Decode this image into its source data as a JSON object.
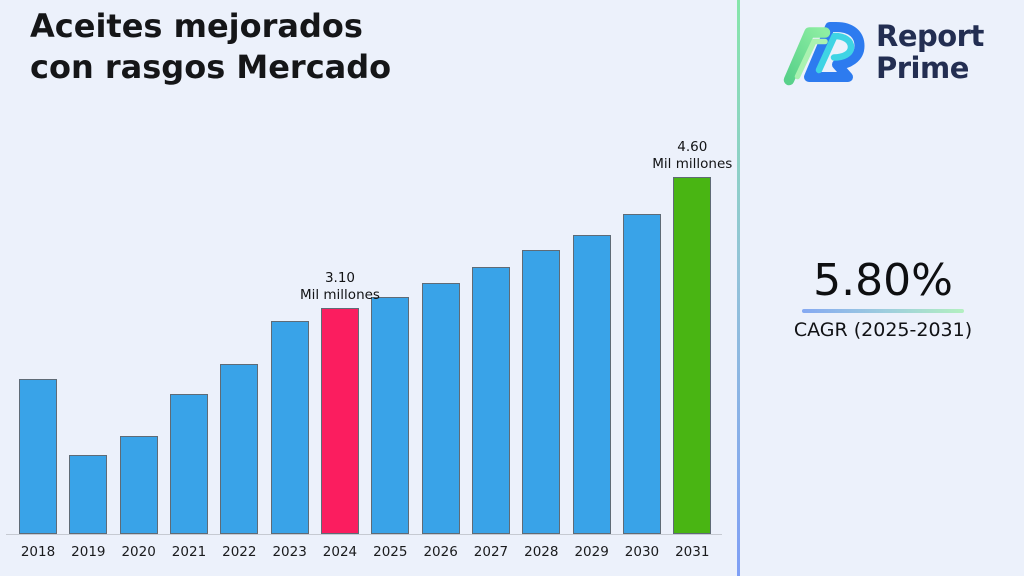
{
  "title": {
    "line1": "Aceites mejorados",
    "line2": "con rasgos Mercado"
  },
  "brand": {
    "name_line1": "Report",
    "name_line2": "Prime"
  },
  "cagr": {
    "value": "5.80%",
    "label": "CAGR (2025-2031)"
  },
  "chart_data": {
    "type": "bar",
    "title": "Aceites mejorados con rasgos Mercado",
    "categories": [
      "2018",
      "2019",
      "2020",
      "2021",
      "2022",
      "2023",
      "2024",
      "2025",
      "2026",
      "2027",
      "2028",
      "2029",
      "2030",
      "2031"
    ],
    "values": [
      2.28,
      1.41,
      1.63,
      2.11,
      2.46,
      2.95,
      3.1,
      3.23,
      3.39,
      3.57,
      3.77,
      3.94,
      4.18,
      4.6
    ],
    "unit": "Mil millones",
    "xlabel": "",
    "ylabel": "",
    "ylim": [
      0.5,
      5.1
    ],
    "grid": false,
    "legend": false,
    "colors": {
      "bar_default": "#39a3e8",
      "bar_highlight_current": "#fb1d5f",
      "bar_highlight_final": "#49b513",
      "bar_edge": "#5f6b76",
      "axis_line": "#c6cad2",
      "background": "#ecf1fb"
    },
    "highlights": {
      "2024": "current",
      "2031": "final"
    },
    "annotations": [
      {
        "category": "2024",
        "value_label": "3.10",
        "unit_label": "Mil millones"
      },
      {
        "category": "2031",
        "value_label": "4.60",
        "unit_label": "Mil millones"
      }
    ]
  }
}
